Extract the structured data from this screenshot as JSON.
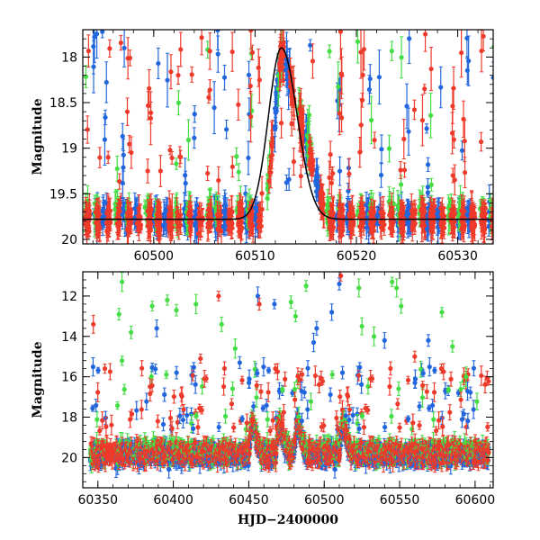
{
  "chart_data": [
    {
      "type": "scatter",
      "panel": "top",
      "xlabel": "",
      "ylabel": "Magnitude",
      "xlim": [
        60493,
        60533.5
      ],
      "ylim": [
        20.05,
        17.7
      ],
      "y_inverted": true,
      "xticks": [
        60500,
        60510,
        60520,
        60530
      ],
      "yticks": [
        18,
        18.5,
        19,
        19.5,
        20
      ],
      "ytick_labels": [
        "18",
        "18.5",
        "19",
        "19.5",
        "20"
      ],
      "grid": false,
      "series": [
        {
          "color": "#2266dd",
          "baseline": 19.75,
          "density": 16
        },
        {
          "color": "#44dd44",
          "baseline": 19.7,
          "density": 12
        },
        {
          "color": "#ee3a2a",
          "baseline": 19.78,
          "density": 22
        }
      ],
      "model_curve": {
        "color": "#000000",
        "baseline": 19.78,
        "peak_x": 60512.6,
        "peak_y": 17.9,
        "rise_width": 1.8,
        "decay_width": 2.2
      },
      "flare": {
        "start": 60511.0,
        "peak": 60512.6,
        "end": 60517.0,
        "peak_mag": 17.9
      }
    },
    {
      "type": "scatter",
      "panel": "bottom",
      "xlabel": "HJD−2400000",
      "ylabel": "Magnitude",
      "xlim": [
        60340,
        60612
      ],
      "ylim": [
        21.5,
        10.8
      ],
      "y_inverted": true,
      "xticks": [
        60350,
        60400,
        60450,
        60500,
        60550,
        60600
      ],
      "yticks": [
        12,
        14,
        16,
        18,
        20
      ],
      "ytick_labels": [
        "12",
        "14",
        "16",
        "18",
        "20"
      ],
      "grid": false,
      "series": [
        {
          "color": "#2266dd",
          "baseline": 19.9,
          "density": 4
        },
        {
          "color": "#44dd44",
          "baseline": 19.7,
          "density": 3
        },
        {
          "color": "#ee3a2a",
          "baseline": 19.8,
          "density": 5
        }
      ],
      "flares": [
        {
          "x": 60452,
          "peak_mag": 18.2
        },
        {
          "x": 60470,
          "peak_mag": 18.4
        },
        {
          "x": 60482,
          "peak_mag": 18.0
        },
        {
          "x": 60512,
          "peak_mag": 17.9
        }
      ],
      "outliers": [
        {
          "x": 60347,
          "y": 13.4,
          "color": "#ee3a2a"
        },
        {
          "x": 60366,
          "y": 11.3,
          "color": "#44dd44"
        },
        {
          "x": 60364,
          "y": 12.9,
          "color": "#44dd44"
        },
        {
          "x": 60386,
          "y": 12.5,
          "color": "#44dd44"
        },
        {
          "x": 60396,
          "y": 12.2,
          "color": "#44dd44"
        },
        {
          "x": 60402,
          "y": 12.7,
          "color": "#44dd44"
        },
        {
          "x": 60389,
          "y": 13.6,
          "color": "#2266dd"
        },
        {
          "x": 60415,
          "y": 12.4,
          "color": "#44dd44"
        },
        {
          "x": 60430,
          "y": 12.0,
          "color": "#ee3a2a"
        },
        {
          "x": 60432,
          "y": 13.4,
          "color": "#44dd44"
        },
        {
          "x": 60456,
          "y": 12.0,
          "color": "#2266dd"
        },
        {
          "x": 60457,
          "y": 12.4,
          "color": "#ee3a2a"
        },
        {
          "x": 60467,
          "y": 12.4,
          "color": "#2266dd"
        },
        {
          "x": 60478,
          "y": 12.3,
          "color": "#44dd44"
        },
        {
          "x": 60488,
          "y": 11.5,
          "color": "#44dd44"
        },
        {
          "x": 60495,
          "y": 13.6,
          "color": "#2266dd"
        },
        {
          "x": 60505,
          "y": 12.8,
          "color": "#2266dd"
        },
        {
          "x": 60510,
          "y": 11.4,
          "color": "#2266dd"
        },
        {
          "x": 60511,
          "y": 11.0,
          "color": "#ee3a2a"
        },
        {
          "x": 60523,
          "y": 11.6,
          "color": "#44dd44"
        },
        {
          "x": 60533,
          "y": 14.0,
          "color": "#44dd44"
        },
        {
          "x": 60545,
          "y": 11.3,
          "color": "#44dd44"
        },
        {
          "x": 60548,
          "y": 11.6,
          "color": "#44dd44"
        },
        {
          "x": 60551,
          "y": 12.5,
          "color": "#44dd44"
        },
        {
          "x": 60578,
          "y": 12.8,
          "color": "#44dd44"
        },
        {
          "x": 60585,
          "y": 14.5,
          "color": "#44dd44"
        },
        {
          "x": 60444,
          "y": 15.3,
          "color": "#2266dd"
        },
        {
          "x": 60493,
          "y": 14.3,
          "color": "#2266dd"
        },
        {
          "x": 60540,
          "y": 14.2,
          "color": "#2266dd"
        },
        {
          "x": 60569,
          "y": 14.2,
          "color": "#2266dd"
        },
        {
          "x": 60366,
          "y": 15.2,
          "color": "#44dd44"
        },
        {
          "x": 60372,
          "y": 13.8,
          "color": "#44dd44"
        },
        {
          "x": 60418,
          "y": 15.1,
          "color": "#ee3a2a"
        },
        {
          "x": 60441,
          "y": 14.6,
          "color": "#44dd44"
        },
        {
          "x": 60481,
          "y": 13.0,
          "color": "#44dd44"
        },
        {
          "x": 60525,
          "y": 13.5,
          "color": "#44dd44"
        },
        {
          "x": 60560,
          "y": 15.0,
          "color": "#ee3a2a"
        },
        {
          "x": 60594,
          "y": 16.0,
          "color": "#44dd44"
        }
      ]
    }
  ]
}
